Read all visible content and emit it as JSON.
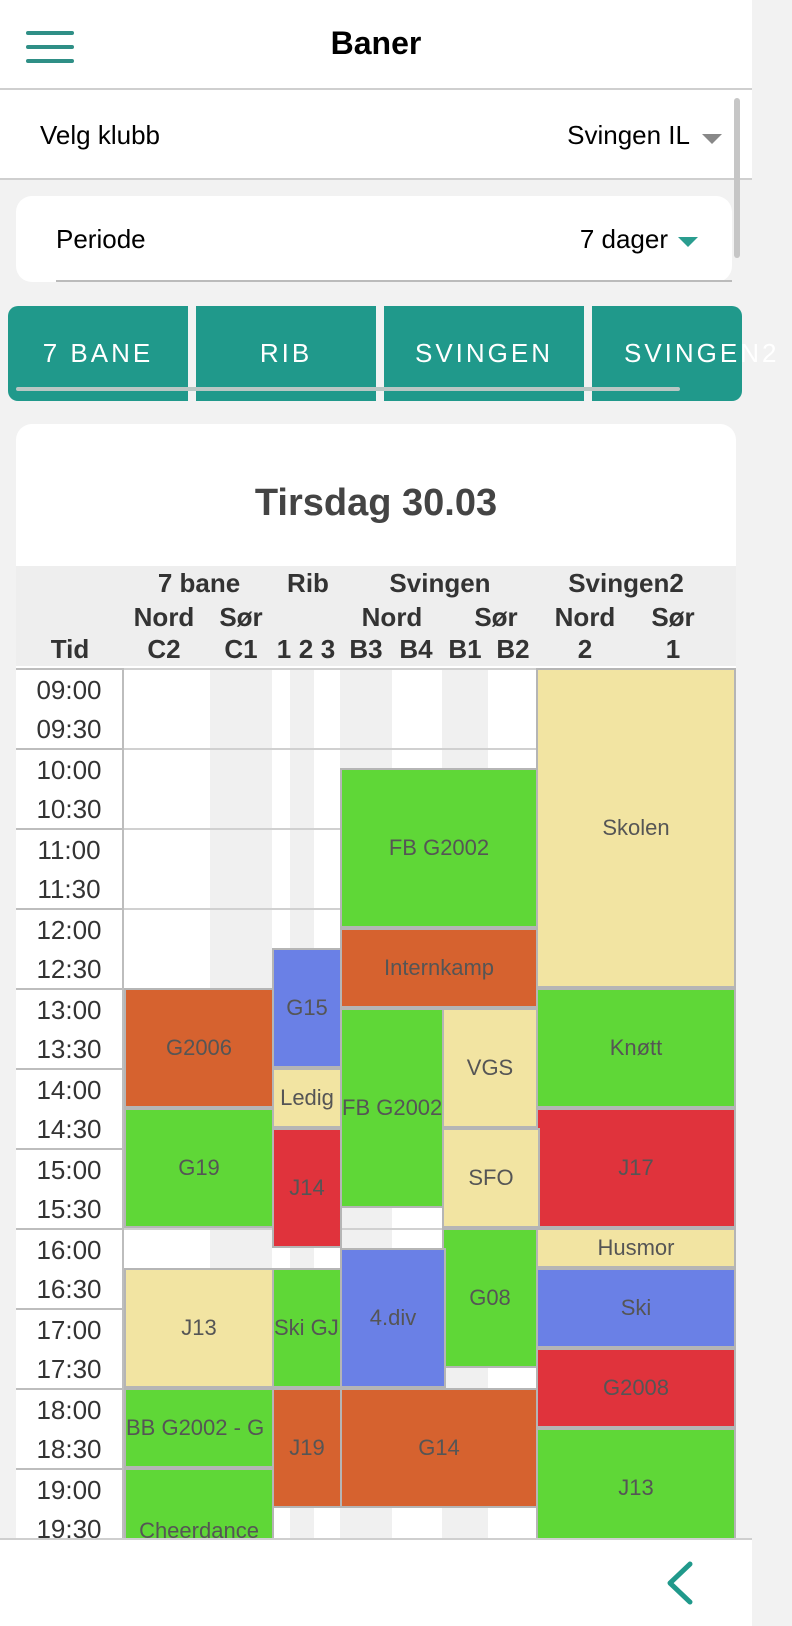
{
  "header": {
    "title": "Baner"
  },
  "club": {
    "label": "Velg klubb",
    "value": "Svingen IL"
  },
  "period": {
    "label": "Periode",
    "value": "7 dager"
  },
  "tabs": [
    "7 BANE",
    "RIB",
    "SVINGEN",
    "SVINGEN2"
  ],
  "schedule": {
    "day": "Tirsdag 30.03",
    "time_label": "Tid",
    "groups": [
      "7 bane",
      "Rib",
      "Svingen",
      "Svingen2"
    ],
    "subgroups": [
      "Nord",
      "Sør",
      "Nord",
      "Sør",
      "Nord",
      "Sør"
    ],
    "courts": [
      "C2",
      "C1",
      "1",
      "2",
      "3",
      "B3",
      "B4",
      "B1",
      "B2",
      "2",
      "1"
    ],
    "times": [
      [
        "09:00",
        "09:30"
      ],
      [
        "10:00",
        "10:30"
      ],
      [
        "11:00",
        "11:30"
      ],
      [
        "12:00",
        "12:30"
      ],
      [
        "13:00",
        "13:30"
      ],
      [
        "14:00",
        "14:30"
      ],
      [
        "15:00",
        "15:30"
      ],
      [
        "16:00",
        "16:30"
      ],
      [
        "17:00",
        "17:30"
      ],
      [
        "18:00",
        "18:30"
      ],
      [
        "19:00",
        "19:30"
      ]
    ],
    "events": [
      {
        "label": "Skolen",
        "type": "yellow",
        "columns": "Svingen2",
        "start": "09:00",
        "end": "12:45"
      },
      {
        "label": "FB G2002",
        "type": "green",
        "columns": "Svingen",
        "start": "10:15",
        "end": "12:15"
      },
      {
        "label": "Internkamp",
        "type": "orange",
        "columns": "Svingen",
        "start": "12:15",
        "end": "13:15"
      },
      {
        "label": "G15",
        "type": "blue",
        "columns": "Rib",
        "start": "12:30",
        "end": "14:00"
      },
      {
        "label": "G2006",
        "type": "orange",
        "columns": "7 bane",
        "start": "13:00",
        "end": "14:30"
      },
      {
        "label": "Knøtt",
        "type": "green",
        "columns": "Svingen2",
        "start": "13:00",
        "end": "14:30"
      },
      {
        "label": "FB G2002",
        "type": "green",
        "columns": "Svingen Nord",
        "start": "13:15",
        "end": "15:45"
      },
      {
        "label": "VGS",
        "type": "yellow",
        "columns": "Svingen Sør",
        "start": "13:15",
        "end": "14:45"
      },
      {
        "label": "Ledig",
        "type": "yellow",
        "columns": "Rib",
        "start": "14:00",
        "end": "14:45"
      },
      {
        "label": "G19",
        "type": "green",
        "columns": "7 bane",
        "start": "14:30",
        "end": "16:00"
      },
      {
        "label": "J17",
        "type": "red",
        "columns": "Svingen2",
        "start": "14:30",
        "end": "16:00"
      },
      {
        "label": "J14",
        "type": "red",
        "columns": "Rib",
        "start": "14:45",
        "end": "16:15"
      },
      {
        "label": "SFO",
        "type": "yellow",
        "columns": "Svingen Sør",
        "start": "14:45",
        "end": "16:00"
      },
      {
        "label": "Husmor",
        "type": "yellow",
        "columns": "Svingen2",
        "start": "16:00",
        "end": "16:30"
      },
      {
        "label": "G08",
        "type": "green",
        "columns": "Svingen Sør",
        "start": "16:00",
        "end": "17:45"
      },
      {
        "label": "4.div",
        "type": "blue",
        "columns": "Svingen Nord",
        "start": "16:15",
        "end": "18:00"
      },
      {
        "label": "J13",
        "type": "yellow",
        "columns": "7 bane",
        "start": "16:30",
        "end": "18:00"
      },
      {
        "label": "Ski GJ",
        "type": "green",
        "columns": "Rib",
        "start": "16:30",
        "end": "18:00"
      },
      {
        "label": "Ski",
        "type": "blue",
        "columns": "Svingen2",
        "start": "16:30",
        "end": "17:30"
      },
      {
        "label": "G2008",
        "type": "red",
        "columns": "Svingen2",
        "start": "17:30",
        "end": "18:30"
      },
      {
        "label": "BB G2002 - G",
        "type": "green",
        "columns": "7 bane",
        "start": "18:00",
        "end": "19:00"
      },
      {
        "label": "J19",
        "type": "orange",
        "columns": "Rib",
        "start": "18:00",
        "end": "19:30"
      },
      {
        "label": "G14",
        "type": "orange",
        "columns": "Svingen",
        "start": "18:00",
        "end": "19:30"
      },
      {
        "label": "J13",
        "type": "green",
        "columns": "Svingen2",
        "start": "18:30",
        "end": "19:30"
      },
      {
        "label": "Cheerdance",
        "type": "green",
        "columns": "7 bane",
        "start": "19:00",
        "end": "19:30"
      }
    ]
  },
  "colors": {
    "accent": "#20998b",
    "green": "#5fd737",
    "orange": "#d6622f",
    "yellow": "#f2e4a2",
    "blue": "#6a80e6",
    "red": "#e0333c"
  },
  "icons": {
    "menu": "hamburger-icon",
    "back": "chevron-left-icon",
    "club_caret": "caret-down-icon",
    "period_caret": "caret-down-icon"
  }
}
